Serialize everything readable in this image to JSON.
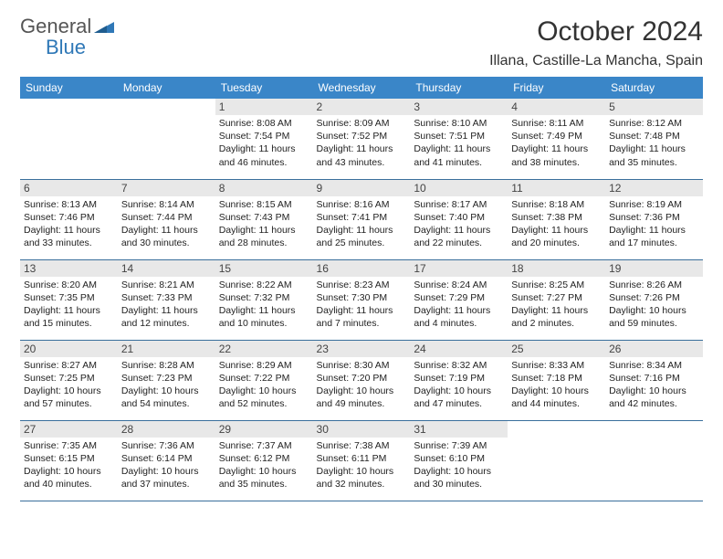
{
  "logo": {
    "text_gray": "General",
    "text_blue": "Blue"
  },
  "title": "October 2024",
  "location": "Illana, Castille-La Mancha, Spain",
  "colors": {
    "header_bg": "#3a86c8",
    "header_text": "#ffffff",
    "daynum_bg": "#e8e8e8",
    "border": "#3a6f9c",
    "logo_blue": "#2f78b7"
  },
  "day_headers": [
    "Sunday",
    "Monday",
    "Tuesday",
    "Wednesday",
    "Thursday",
    "Friday",
    "Saturday"
  ],
  "weeks": [
    [
      {
        "n": "",
        "sr": "",
        "ss": "",
        "dl": ""
      },
      {
        "n": "",
        "sr": "",
        "ss": "",
        "dl": ""
      },
      {
        "n": "1",
        "sr": "Sunrise: 8:08 AM",
        "ss": "Sunset: 7:54 PM",
        "dl": "Daylight: 11 hours and 46 minutes."
      },
      {
        "n": "2",
        "sr": "Sunrise: 8:09 AM",
        "ss": "Sunset: 7:52 PM",
        "dl": "Daylight: 11 hours and 43 minutes."
      },
      {
        "n": "3",
        "sr": "Sunrise: 8:10 AM",
        "ss": "Sunset: 7:51 PM",
        "dl": "Daylight: 11 hours and 41 minutes."
      },
      {
        "n": "4",
        "sr": "Sunrise: 8:11 AM",
        "ss": "Sunset: 7:49 PM",
        "dl": "Daylight: 11 hours and 38 minutes."
      },
      {
        "n": "5",
        "sr": "Sunrise: 8:12 AM",
        "ss": "Sunset: 7:48 PM",
        "dl": "Daylight: 11 hours and 35 minutes."
      }
    ],
    [
      {
        "n": "6",
        "sr": "Sunrise: 8:13 AM",
        "ss": "Sunset: 7:46 PM",
        "dl": "Daylight: 11 hours and 33 minutes."
      },
      {
        "n": "7",
        "sr": "Sunrise: 8:14 AM",
        "ss": "Sunset: 7:44 PM",
        "dl": "Daylight: 11 hours and 30 minutes."
      },
      {
        "n": "8",
        "sr": "Sunrise: 8:15 AM",
        "ss": "Sunset: 7:43 PM",
        "dl": "Daylight: 11 hours and 28 minutes."
      },
      {
        "n": "9",
        "sr": "Sunrise: 8:16 AM",
        "ss": "Sunset: 7:41 PM",
        "dl": "Daylight: 11 hours and 25 minutes."
      },
      {
        "n": "10",
        "sr": "Sunrise: 8:17 AM",
        "ss": "Sunset: 7:40 PM",
        "dl": "Daylight: 11 hours and 22 minutes."
      },
      {
        "n": "11",
        "sr": "Sunrise: 8:18 AM",
        "ss": "Sunset: 7:38 PM",
        "dl": "Daylight: 11 hours and 20 minutes."
      },
      {
        "n": "12",
        "sr": "Sunrise: 8:19 AM",
        "ss": "Sunset: 7:36 PM",
        "dl": "Daylight: 11 hours and 17 minutes."
      }
    ],
    [
      {
        "n": "13",
        "sr": "Sunrise: 8:20 AM",
        "ss": "Sunset: 7:35 PM",
        "dl": "Daylight: 11 hours and 15 minutes."
      },
      {
        "n": "14",
        "sr": "Sunrise: 8:21 AM",
        "ss": "Sunset: 7:33 PM",
        "dl": "Daylight: 11 hours and 12 minutes."
      },
      {
        "n": "15",
        "sr": "Sunrise: 8:22 AM",
        "ss": "Sunset: 7:32 PM",
        "dl": "Daylight: 11 hours and 10 minutes."
      },
      {
        "n": "16",
        "sr": "Sunrise: 8:23 AM",
        "ss": "Sunset: 7:30 PM",
        "dl": "Daylight: 11 hours and 7 minutes."
      },
      {
        "n": "17",
        "sr": "Sunrise: 8:24 AM",
        "ss": "Sunset: 7:29 PM",
        "dl": "Daylight: 11 hours and 4 minutes."
      },
      {
        "n": "18",
        "sr": "Sunrise: 8:25 AM",
        "ss": "Sunset: 7:27 PM",
        "dl": "Daylight: 11 hours and 2 minutes."
      },
      {
        "n": "19",
        "sr": "Sunrise: 8:26 AM",
        "ss": "Sunset: 7:26 PM",
        "dl": "Daylight: 10 hours and 59 minutes."
      }
    ],
    [
      {
        "n": "20",
        "sr": "Sunrise: 8:27 AM",
        "ss": "Sunset: 7:25 PM",
        "dl": "Daylight: 10 hours and 57 minutes."
      },
      {
        "n": "21",
        "sr": "Sunrise: 8:28 AM",
        "ss": "Sunset: 7:23 PM",
        "dl": "Daylight: 10 hours and 54 minutes."
      },
      {
        "n": "22",
        "sr": "Sunrise: 8:29 AM",
        "ss": "Sunset: 7:22 PM",
        "dl": "Daylight: 10 hours and 52 minutes."
      },
      {
        "n": "23",
        "sr": "Sunrise: 8:30 AM",
        "ss": "Sunset: 7:20 PM",
        "dl": "Daylight: 10 hours and 49 minutes."
      },
      {
        "n": "24",
        "sr": "Sunrise: 8:32 AM",
        "ss": "Sunset: 7:19 PM",
        "dl": "Daylight: 10 hours and 47 minutes."
      },
      {
        "n": "25",
        "sr": "Sunrise: 8:33 AM",
        "ss": "Sunset: 7:18 PM",
        "dl": "Daylight: 10 hours and 44 minutes."
      },
      {
        "n": "26",
        "sr": "Sunrise: 8:34 AM",
        "ss": "Sunset: 7:16 PM",
        "dl": "Daylight: 10 hours and 42 minutes."
      }
    ],
    [
      {
        "n": "27",
        "sr": "Sunrise: 7:35 AM",
        "ss": "Sunset: 6:15 PM",
        "dl": "Daylight: 10 hours and 40 minutes."
      },
      {
        "n": "28",
        "sr": "Sunrise: 7:36 AM",
        "ss": "Sunset: 6:14 PM",
        "dl": "Daylight: 10 hours and 37 minutes."
      },
      {
        "n": "29",
        "sr": "Sunrise: 7:37 AM",
        "ss": "Sunset: 6:12 PM",
        "dl": "Daylight: 10 hours and 35 minutes."
      },
      {
        "n": "30",
        "sr": "Sunrise: 7:38 AM",
        "ss": "Sunset: 6:11 PM",
        "dl": "Daylight: 10 hours and 32 minutes."
      },
      {
        "n": "31",
        "sr": "Sunrise: 7:39 AM",
        "ss": "Sunset: 6:10 PM",
        "dl": "Daylight: 10 hours and 30 minutes."
      },
      {
        "n": "",
        "sr": "",
        "ss": "",
        "dl": ""
      },
      {
        "n": "",
        "sr": "",
        "ss": "",
        "dl": ""
      }
    ]
  ]
}
